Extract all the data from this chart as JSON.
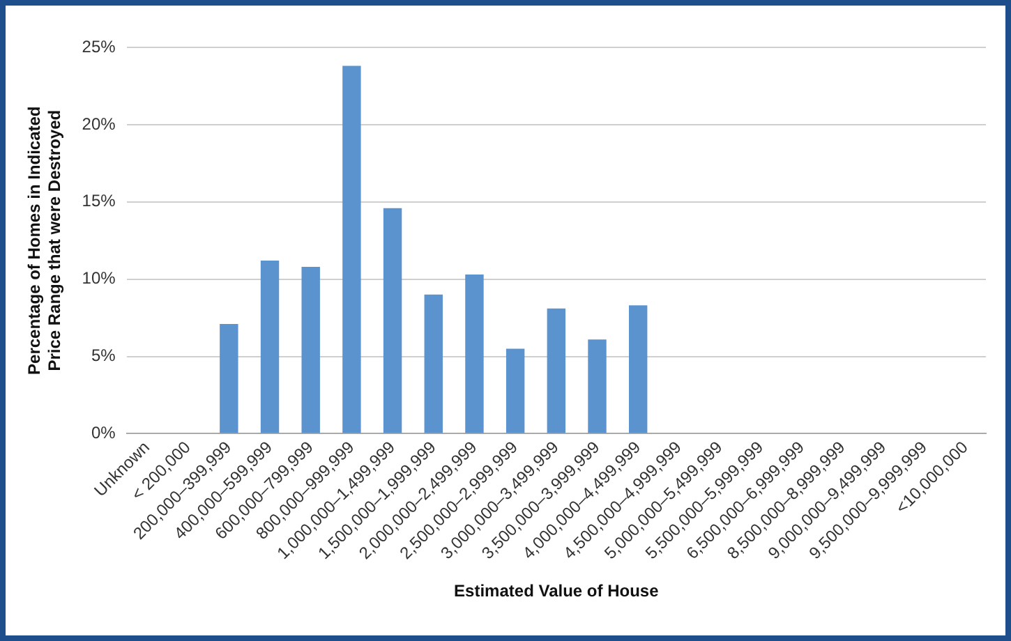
{
  "chart_data": {
    "type": "bar",
    "xlabel": "Estimated Value of House",
    "ylabel": "Percentage of Homes in Indicated Price Range that were Destroyed",
    "categories": [
      "Unknown",
      "< 200,000",
      "200,000–399,999",
      "400,000–599,999",
      "600,000–799,999",
      "800,000–999,999",
      "1,000,000–1,499,999",
      "1,500,000–1,999,999",
      "2,000,000–2,499,999",
      "2,500,000–2,999,999",
      "3,000,000–3,499,999",
      "3,500,000–3,999,999",
      "4,000,000–4,499,999",
      "4,500,000–4,999,999",
      "5,000,000–5,499,999",
      "5,500,000–5,999,999",
      "6,500,000–6,999,999",
      "8,500,000–8,999,999",
      "9,000,000–9,499,999",
      "9,500,000–9,999,999",
      "<10,000,000"
    ],
    "values": [
      0,
      0,
      7.1,
      11.2,
      10.8,
      23.8,
      14.6,
      9.0,
      10.3,
      5.5,
      8.1,
      6.1,
      8.3,
      0,
      0,
      0,
      0,
      0,
      0,
      0,
      0
    ],
    "color": "#5b93cf",
    "ylim": [
      0,
      25
    ],
    "yticks": [
      {
        "value": 0,
        "label": "0%"
      },
      {
        "value": 5,
        "label": "5%"
      },
      {
        "value": 10,
        "label": "10%"
      },
      {
        "value": 15,
        "label": "15%"
      },
      {
        "value": 20,
        "label": "20%"
      },
      {
        "value": 25,
        "label": "25%"
      }
    ],
    "grid": "y",
    "legend": false
  }
}
